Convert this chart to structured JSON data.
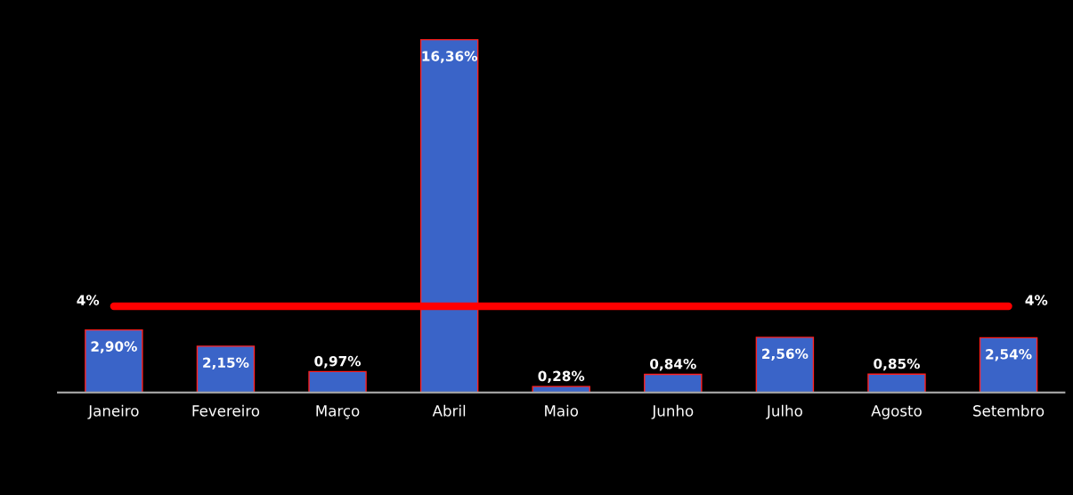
{
  "chart_data": {
    "type": "bar",
    "categories": [
      "Janeiro",
      "Fevereiro",
      "Março",
      "Abril",
      "Maio",
      "Junho",
      "Julho",
      "Agosto",
      "Setembro"
    ],
    "series": [
      {
        "color": "#3a64c8",
        "values": [
          2.9,
          2.15,
          0.97,
          16.36,
          0.28,
          0.84,
          2.56,
          0.85,
          2.54
        ],
        "value_labels": [
          "2,90%",
          "2,15%",
          "0,97%",
          "16,36%",
          "0,28%",
          "0,84%",
          "2,56%",
          "0,85%",
          "2,54%"
        ]
      },
      {
        "type": "line",
        "color": "#ff0000",
        "values": [
          4,
          4,
          4,
          4,
          4,
          4,
          4,
          4,
          4
        ]
      }
    ],
    "annotations": [
      {
        "text": "4%",
        "x": "Janeiro",
        "y": 4
      },
      {
        "text": "4%",
        "x": "Setembro",
        "y": 4
      }
    ],
    "ylim": [
      0,
      18.2
    ],
    "grid": false,
    "legend": false
  }
}
